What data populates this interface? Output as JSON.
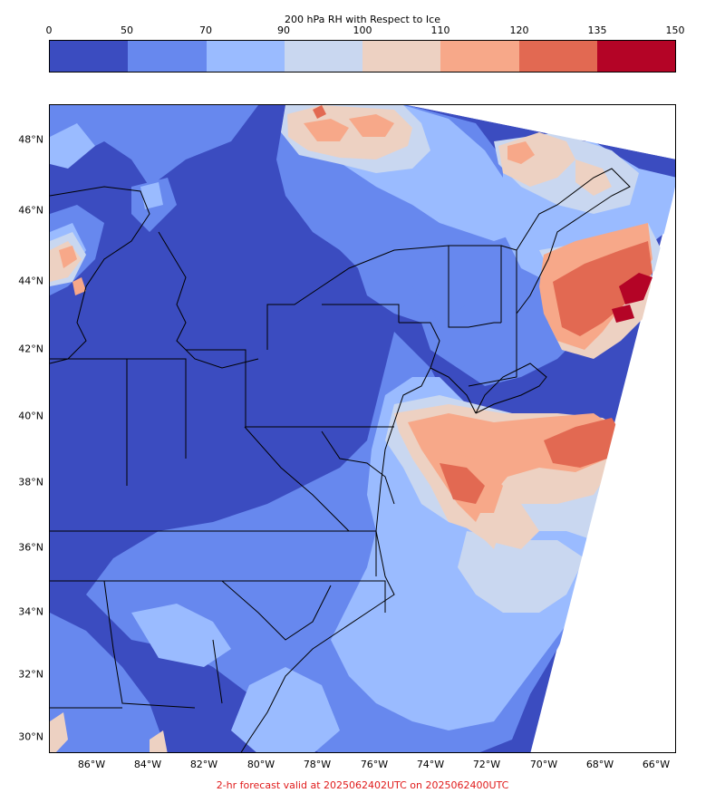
{
  "colorbar": {
    "title": "200 hPa RH with Respect to Ice",
    "ticks": [
      "0",
      "50",
      "70",
      "90",
      "100",
      "110",
      "120",
      "135",
      "150"
    ],
    "colors": [
      "#3b4cc0",
      "#6788ee",
      "#9abbff",
      "#c9d7f0",
      "#edd1c2",
      "#f7a889",
      "#e26952",
      "#b40426"
    ]
  },
  "map": {
    "lat_labels": [
      "48°N",
      "46°N",
      "44°N",
      "42°N",
      "40°N",
      "38°N",
      "36°N",
      "34°N",
      "32°N",
      "30°N"
    ],
    "lon_labels": [
      "86°W",
      "84°W",
      "82°W",
      "80°W",
      "78°W",
      "76°W",
      "74°W",
      "72°W",
      "70°W",
      "68°W",
      "66°W"
    ]
  },
  "footer": "2-hr forecast valid at 2025062402UTC on 2025062400UTC"
}
